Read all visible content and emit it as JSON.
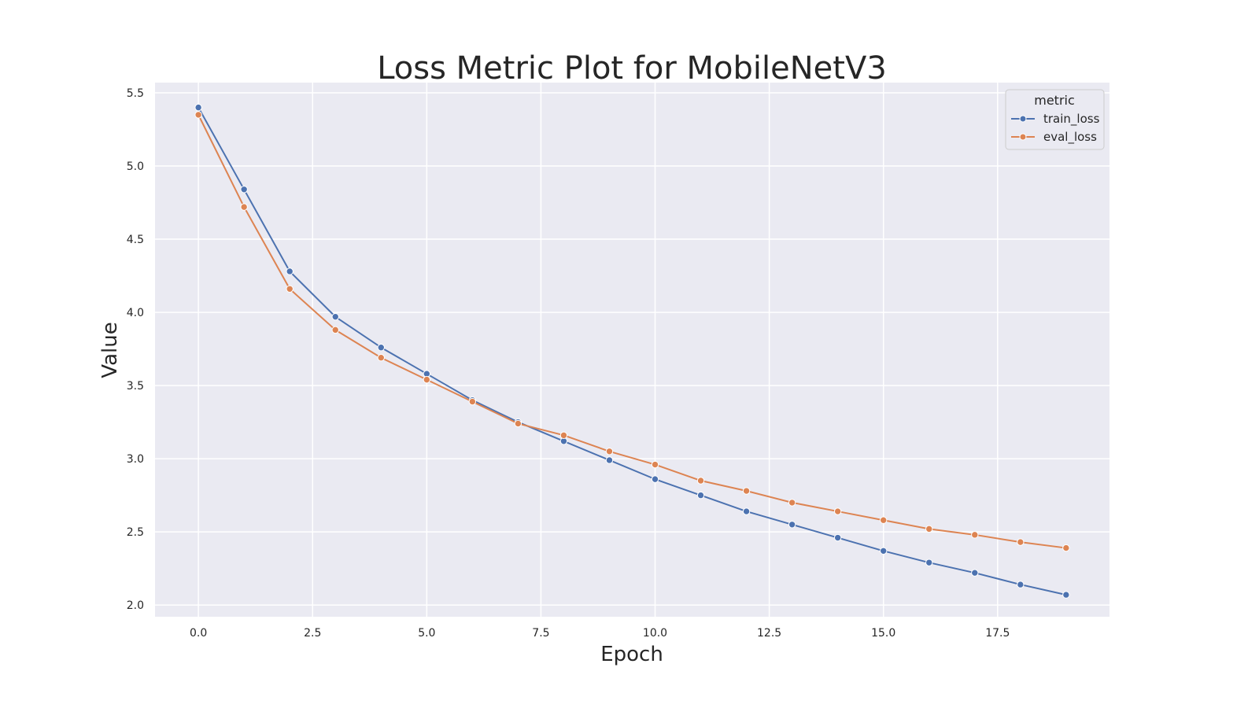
{
  "chart_data": {
    "type": "line",
    "title": "Loss Metric Plot for MobileNetV3",
    "xlabel": "Epoch",
    "ylabel": "Value",
    "xlim": [
      -0.95,
      19.95
    ],
    "ylim": [
      1.92,
      5.57
    ],
    "xticks": [
      0.0,
      2.5,
      5.0,
      7.5,
      10.0,
      12.5,
      15.0,
      17.5
    ],
    "xtick_labels": [
      "0.0",
      "2.5",
      "5.0",
      "7.5",
      "10.0",
      "12.5",
      "15.0",
      "17.5"
    ],
    "yticks": [
      2.0,
      2.5,
      3.0,
      3.5,
      4.0,
      4.5,
      5.0,
      5.5
    ],
    "ytick_labels": [
      "2.0",
      "2.5",
      "3.0",
      "3.5",
      "4.0",
      "4.5",
      "5.0",
      "5.5"
    ],
    "grid": true,
    "legend": {
      "title": "metric",
      "placement": "top-right"
    },
    "x": [
      0,
      1,
      2,
      3,
      4,
      5,
      6,
      7,
      8,
      9,
      10,
      11,
      12,
      13,
      14,
      15,
      16,
      17,
      18,
      19
    ],
    "series": [
      {
        "name": "train_loss",
        "color": "#4c72b0",
        "values": [
          5.4,
          4.84,
          4.28,
          3.97,
          3.76,
          3.58,
          3.4,
          3.25,
          3.12,
          2.99,
          2.86,
          2.75,
          2.64,
          2.55,
          2.46,
          2.37,
          2.29,
          2.22,
          2.14,
          2.07
        ]
      },
      {
        "name": "eval_loss",
        "color": "#dd8452",
        "values": [
          5.35,
          4.72,
          4.16,
          3.88,
          3.69,
          3.54,
          3.39,
          3.24,
          3.16,
          3.05,
          2.96,
          2.85,
          2.78,
          2.7,
          2.64,
          2.58,
          2.52,
          2.48,
          2.43,
          2.39
        ]
      }
    ]
  },
  "style": {
    "axes_background": "#eaeaf2",
    "grid_color": "#ffffff",
    "text_color": "#262626"
  }
}
